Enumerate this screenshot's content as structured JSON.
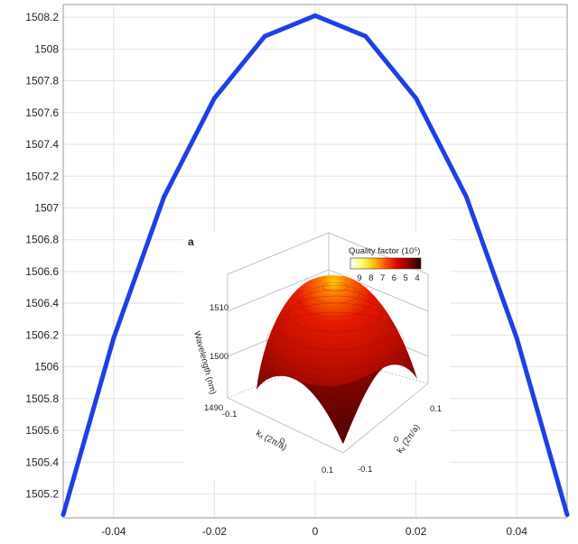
{
  "chart_data": [
    {
      "type": "line",
      "title": "",
      "xlabel": "",
      "ylabel": "",
      "xlim": [
        -0.05,
        0.05
      ],
      "ylim": [
        1505.05,
        1508.28
      ],
      "x_ticks": [
        "-0.04",
        "-0.02",
        "0",
        "0.02",
        "0.04"
      ],
      "y_ticks": [
        "1505.2",
        "1505.4",
        "1505.6",
        "1505.8",
        "1506",
        "1506.2",
        "1506.4",
        "1506.6",
        "1506.8",
        "1507",
        "1507.2",
        "1507.4",
        "1507.6",
        "1507.8",
        "1508",
        "1508.2"
      ],
      "grid": true,
      "series": [
        {
          "color": "#1f3fe6",
          "x": [
            -0.05,
            -0.04,
            -0.03,
            -0.02,
            -0.01,
            0,
            0.01,
            0.02,
            0.03,
            0.04,
            0.05
          ],
          "y": [
            1505.07,
            1506.18,
            1507.07,
            1507.69,
            1508.08,
            1508.21,
            1508.08,
            1507.69,
            1507.07,
            1506.18,
            1505.07
          ]
        }
      ]
    },
    {
      "type": "surface3d",
      "panel_label": "a",
      "colorbar": {
        "title": "Quality factor (10⁵)",
        "ticks": [
          "9",
          "8",
          "7",
          "6",
          "5",
          "4"
        ],
        "colors": [
          "#ffffff",
          "#ffff70",
          "#ffc000",
          "#ff5000",
          "#dd0000",
          "#8a0000",
          "#200000"
        ]
      },
      "z_axis": {
        "label": "Wavelength (nm)",
        "ticks": [
          "1490",
          "1500",
          "1510"
        ]
      },
      "x_axis": {
        "label": "kₓ (2π/a)",
        "ticks": [
          "-0.1",
          "0",
          "0.1"
        ]
      },
      "y_axis": {
        "label": "kᵧ (2π/a)",
        "ticks": [
          "0.1",
          "0",
          "-0.1"
        ]
      }
    }
  ]
}
